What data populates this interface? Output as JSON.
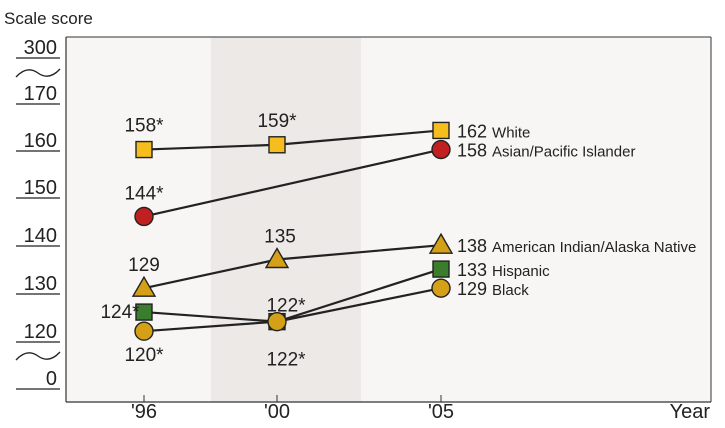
{
  "chart_data": {
    "type": "line",
    "ylabel": "Scale score",
    "xlabel": "Year",
    "x": [
      "'96",
      "'00",
      "'05"
    ],
    "y_ticks": [
      "300",
      "170",
      "160",
      "150",
      "140",
      "130",
      "120",
      "0"
    ],
    "y_axis_breaks": [
      "300-170",
      "120-0"
    ],
    "ylim": [
      115,
      175
    ],
    "shaded_year": "'00",
    "grid": false,
    "series": [
      {
        "name": "White",
        "marker": "square",
        "color": "#F5BE1E",
        "values": [
          158,
          159,
          162
        ],
        "labels": [
          "158*",
          "159*",
          "162"
        ]
      },
      {
        "name": "Asian/Pacific Islander",
        "marker": "circle",
        "color": "#C0201F",
        "values": [
          144,
          null,
          158
        ],
        "labels": [
          "144*",
          "",
          "158"
        ]
      },
      {
        "name": "American Indian/Alaska Native",
        "marker": "triangle",
        "color": "#D4A017",
        "values": [
          129,
          135,
          138
        ],
        "labels": [
          "129",
          "135",
          "138"
        ]
      },
      {
        "name": "Hispanic",
        "marker": "square",
        "color": "#3A7D2C",
        "values": [
          124,
          122,
          133
        ],
        "labels": [
          "124*",
          "122*",
          "133"
        ]
      },
      {
        "name": "Black",
        "marker": "circle",
        "color": "#D4A017",
        "values": [
          120,
          122,
          129
        ],
        "labels": [
          "120*",
          "122*",
          "129"
        ]
      }
    ]
  }
}
